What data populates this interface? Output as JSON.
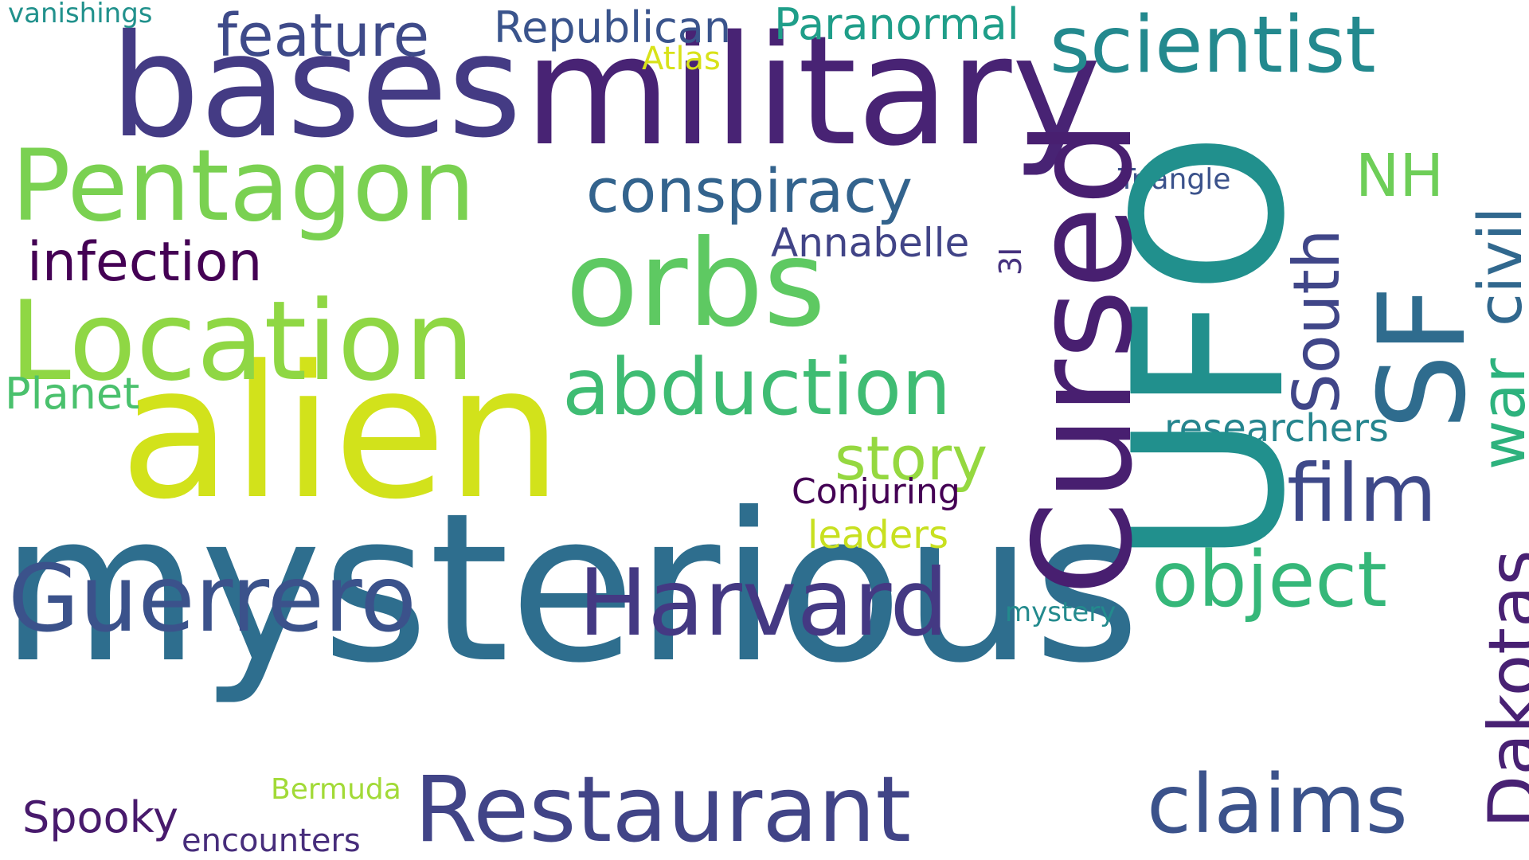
{
  "background": "#ffffff",
  "words": [
    {
      "key": "mysterious",
      "text": "mysterious",
      "color": "#2e6e8e"
    },
    {
      "key": "alien",
      "text": "alien",
      "color": "#d2e21b"
    },
    {
      "key": "military",
      "text": "military",
      "color": "#482374"
    },
    {
      "key": "bases",
      "text": "bases",
      "color": "#443b84"
    },
    {
      "key": "ufo",
      "text": "UFO",
      "color": "#21908d"
    },
    {
      "key": "restaurant",
      "text": "Restaurant",
      "color": "#414487"
    },
    {
      "key": "guerrero",
      "text": "Guerrero",
      "color": "#3b528b"
    },
    {
      "key": "harvard",
      "text": "Harvard",
      "color": "#443983"
    },
    {
      "key": "location",
      "text": "Location",
      "color": "#8fd744"
    },
    {
      "key": "pentagon",
      "text": "Pentagon",
      "color": "#7ad151"
    },
    {
      "key": "orbs",
      "text": "orbs",
      "color": "#5ec962"
    },
    {
      "key": "cursed",
      "text": "Cursed",
      "color": "#481f70"
    },
    {
      "key": "abduction",
      "text": "abduction",
      "color": "#3fbc73"
    },
    {
      "key": "scientist",
      "text": "scientist",
      "color": "#23898e"
    },
    {
      "key": "sf",
      "text": "SF",
      "color": "#2f6c8e"
    },
    {
      "key": "claims",
      "text": "claims",
      "color": "#3b528b"
    },
    {
      "key": "film",
      "text": "film",
      "color": "#3e4989"
    },
    {
      "key": "object",
      "text": "object",
      "color": "#35b779"
    },
    {
      "key": "conspiracy",
      "text": "conspiracy",
      "color": "#33638d"
    },
    {
      "key": "infection",
      "text": "infection",
      "color": "#440154"
    },
    {
      "key": "feature",
      "text": "feature",
      "color": "#3e4a89"
    },
    {
      "key": "story",
      "text": "story",
      "color": "#95d840"
    },
    {
      "key": "dakotas",
      "text": "Dakotas",
      "color": "#482173"
    },
    {
      "key": "south",
      "text": "South",
      "color": "#404688"
    },
    {
      "key": "war",
      "text": "war",
      "color": "#2db27d"
    },
    {
      "key": "civil",
      "text": "civil",
      "color": "#31688e"
    },
    {
      "key": "nh",
      "text": "NH",
      "color": "#6ece58"
    },
    {
      "key": "republican",
      "text": "Republican",
      "color": "#3a548c"
    },
    {
      "key": "paranormal",
      "text": "Paranormal",
      "color": "#1f9e89"
    },
    {
      "key": "annabelle",
      "text": "Annabelle",
      "color": "#414487"
    },
    {
      "key": "researchers",
      "text": "researchers",
      "color": "#25858e"
    },
    {
      "key": "planet",
      "text": "Planet",
      "color": "#4ac16d"
    },
    {
      "key": "spooky",
      "text": "Spooky",
      "color": "#481a6c"
    },
    {
      "key": "conjuring",
      "text": "Conjuring",
      "color": "#440154"
    },
    {
      "key": "leaders",
      "text": "leaders",
      "color": "#c8e020"
    },
    {
      "key": "encounters",
      "text": "encounters",
      "color": "#472d7b"
    },
    {
      "key": "bermuda",
      "text": "Bermuda",
      "color": "#a2da37"
    },
    {
      "key": "mystery",
      "text": "mystery",
      "color": "#238a8d"
    },
    {
      "key": "atlas",
      "text": "Atlas",
      "color": "#d8e219"
    },
    {
      "key": "triangle",
      "text": "Triangle",
      "color": "#3b528b"
    },
    {
      "key": "vanishings",
      "text": "vanishings",
      "color": "#21918c"
    },
    {
      "key": "three_i",
      "text": "3I",
      "color": "#46327e"
    }
  ]
}
